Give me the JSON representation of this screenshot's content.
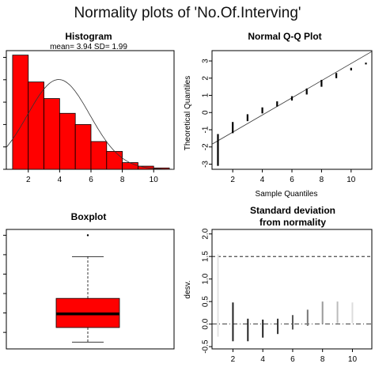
{
  "page": {
    "title": "Normality plots of 'No.Of.Interving'"
  },
  "chart_data": [
    {
      "type": "bar",
      "panel": "histogram",
      "title": "Histogram",
      "subtitle": "mean= 3.94  SD= 1.99",
      "fill_color": "#ff0000",
      "bins": [
        {
          "x0": 1,
          "x1": 2,
          "value": 0.255
        },
        {
          "x0": 2,
          "x1": 3,
          "value": 0.195
        },
        {
          "x0": 3,
          "x1": 4,
          "value": 0.158
        },
        {
          "x0": 4,
          "x1": 5,
          "value": 0.125
        },
        {
          "x0": 5,
          "x1": 6,
          "value": 0.1
        },
        {
          "x0": 6,
          "x1": 7,
          "value": 0.062
        },
        {
          "x0": 7,
          "x1": 8,
          "value": 0.04
        },
        {
          "x0": 8,
          "x1": 9,
          "value": 0.015
        },
        {
          "x0": 9,
          "x1": 10,
          "value": 0.007
        },
        {
          "x0": 10,
          "x1": 11,
          "value": 0.003
        }
      ],
      "normal_curve": {
        "mean": 3.94,
        "sd": 1.99
      },
      "xlim": [
        0.6,
        11.3
      ],
      "ylim": [
        0,
        0.265
      ],
      "xticks": [
        "2",
        "4",
        "6",
        "8",
        "10"
      ],
      "grid": false
    },
    {
      "type": "scatter",
      "panel": "qq",
      "title": "Normal Q-Q Plot",
      "xlabel": "Sample Quantiles",
      "ylabel": "Theoretical Quantiles",
      "points": [
        {
          "x": 1,
          "y_min": -3.1,
          "y_max": -1.25
        },
        {
          "x": 2,
          "y_min": -1.2,
          "y_max": -0.55
        },
        {
          "x": 3,
          "y_min": -0.5,
          "y_max": -0.1
        },
        {
          "x": 4,
          "y_min": -0.05,
          "y_max": 0.3
        },
        {
          "x": 5,
          "y_min": 0.35,
          "y_max": 0.65
        },
        {
          "x": 6,
          "y_min": 0.7,
          "y_max": 0.95
        },
        {
          "x": 7,
          "y_min": 1.05,
          "y_max": 1.4
        },
        {
          "x": 8,
          "y_min": 1.5,
          "y_max": 1.9
        },
        {
          "x": 9,
          "y_min": 2.0,
          "y_max": 2.3
        },
        {
          "x": 10,
          "y_min": 2.45,
          "y_max": 2.6
        },
        {
          "x": 11,
          "y_min": 2.8,
          "y_max": 2.9
        }
      ],
      "reference_line": {
        "x0": 0.6,
        "y0": -1.84,
        "x1": 11.4,
        "y1": 3.55
      },
      "xlim": [
        0.6,
        11.4
      ],
      "ylim": [
        -3.3,
        3.6
      ],
      "xticks": [
        "2",
        "4",
        "6",
        "8",
        "10"
      ],
      "yticks": [
        "-3",
        "-2",
        "-1",
        "0",
        "1",
        "2",
        "3"
      ]
    },
    {
      "type": "box",
      "panel": "boxplot",
      "title": "Boxplot",
      "fill_color": "#ff0000",
      "stats": {
        "min": 1,
        "q1": 2.5,
        "median": 3.9,
        "q3": 5.5,
        "max": 9.8,
        "outlier": 12
      },
      "ylim": [
        0.3,
        12.6
      ]
    },
    {
      "type": "bar",
      "panel": "deviation",
      "title": "Standard deviation",
      "subtitle": "from normality",
      "ylabel": "desv.",
      "segments": [
        {
          "x": 1,
          "y0": -0.28,
          "y1": 1.55,
          "color": "#e3e3e3"
        },
        {
          "x": 2,
          "y0": -0.38,
          "y1": 0.48,
          "color": "#222222"
        },
        {
          "x": 3,
          "y0": -0.38,
          "y1": 0.12,
          "color": "#222222"
        },
        {
          "x": 4,
          "y0": -0.3,
          "y1": 0.1,
          "color": "#222222"
        },
        {
          "x": 5,
          "y0": -0.22,
          "y1": 0.12,
          "color": "#333333"
        },
        {
          "x": 6,
          "y0": -0.12,
          "y1": 0.2,
          "color": "#555555"
        },
        {
          "x": 7,
          "y0": -0.04,
          "y1": 0.32,
          "color": "#777777"
        },
        {
          "x": 8,
          "y0": 0.0,
          "y1": 0.5,
          "color": "#999999"
        },
        {
          "x": 9,
          "y0": 0.02,
          "y1": 0.5,
          "color": "#bbbbbb"
        },
        {
          "x": 10,
          "y0": 0.02,
          "y1": 0.48,
          "color": "#dddddd"
        }
      ],
      "hlines": [
        1.5,
        0
      ],
      "xlim": [
        0.6,
        11.3
      ],
      "ylim": [
        -0.55,
        2.1
      ],
      "xticks": [
        "2",
        "4",
        "6",
        "8",
        "10"
      ],
      "yticks": [
        "-0.5",
        "0.0",
        "0.5",
        "1.0",
        "1.5",
        "2.0"
      ]
    }
  ]
}
